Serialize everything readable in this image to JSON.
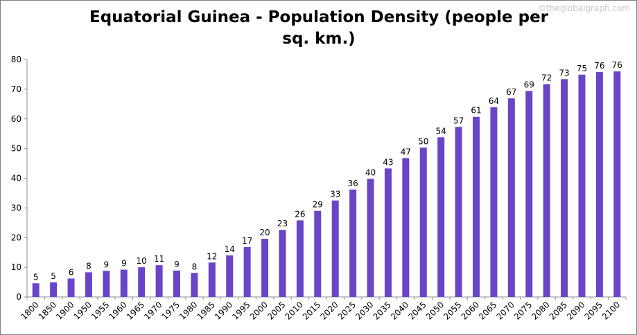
{
  "watermark": "©theglobalgraph.com",
  "chart_data": {
    "type": "bar",
    "title": "Equatorial Guinea - Population Density (people per sq. km.)",
    "title_lines": [
      "Equatorial Guinea - Population Density (people per",
      "sq. km.)"
    ],
    "xlabel": "",
    "ylabel": "",
    "ylim": [
      0,
      80
    ],
    "yticks": [
      0,
      10,
      20,
      30,
      40,
      50,
      60,
      70,
      80
    ],
    "grid": false,
    "legend": "none",
    "bar_color": "#6a45c7",
    "categories": [
      "1800",
      "1850",
      "1900",
      "1950",
      "1955",
      "1960",
      "1965",
      "1970",
      "1975",
      "1980",
      "1985",
      "1990",
      "1995",
      "2000",
      "2005",
      "2010",
      "2015",
      "2020",
      "2025",
      "2030",
      "2035",
      "2040",
      "2045",
      "2050",
      "2055",
      "2060",
      "2065",
      "2070",
      "2075",
      "2080",
      "2085",
      "2090",
      "2095",
      "2100"
    ],
    "values": [
      4.6,
      4.9,
      6.2,
      8.3,
      8.8,
      9.2,
      10.0,
      10.7,
      8.9,
      8.1,
      11.6,
      14.0,
      16.8,
      19.6,
      22.6,
      25.8,
      29.0,
      32.5,
      36.2,
      39.8,
      43.3,
      46.8,
      50.3,
      53.8,
      57.3,
      60.7,
      63.9,
      66.9,
      69.4,
      71.7,
      73.4,
      74.9,
      75.8,
      76.0
    ],
    "data_labels": [
      "5",
      "5",
      "6",
      "8",
      "9",
      "9",
      "10",
      "11",
      "9",
      "8",
      "12",
      "14",
      "17",
      "20",
      "23",
      "26",
      "29",
      "33",
      "36",
      "40",
      "43",
      "47",
      "50",
      "54",
      "57",
      "61",
      "64",
      "67",
      "69",
      "72",
      "73",
      "75",
      "76",
      "76"
    ]
  }
}
